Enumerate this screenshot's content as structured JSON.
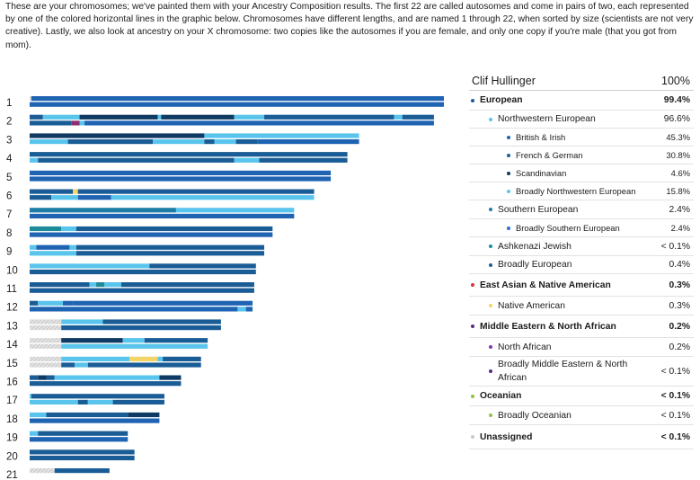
{
  "intro_text": "These are your chromosomes; we've painted them with your Ancestry Composition results. The first 22 are called autosomes and come in pairs of two, each represented by one of the colored horizontal lines in the graphic below. Chromosomes have different lengths, and are named 1 through 22, when sorted by size (scientists are not very creative). Lastly, we also look at ancestry on your X chromosome: two copies like the autosomes if you are female, and only one copy if you're male (that you got from mom).",
  "colors": {
    "british_irish": "#1f63b3",
    "french_german": "#1a5c96",
    "scandinavian": "#0f3a63",
    "broadly_nw_european": "#5ac5ec",
    "southern_european": "#1e7da6",
    "broadly_southern_european": "#2b6fd0",
    "ashkenazi": "#1e8a9a",
    "broadly_european": "#215d8d",
    "east_asian": "#d9363d",
    "native_american": "#f2d467",
    "middle_eastern": "#5b2a86",
    "north_african": "#7c3bb0",
    "broadly_mena": "#8a2f73",
    "oceanian": "#8cc63f",
    "broadly_oceanian": "#8cc63f",
    "unassigned": "#c8c8c8"
  },
  "legend": {
    "person": "Clif Hullinger",
    "total": "100%",
    "rows": [
      {
        "label": "European",
        "value": "99.4%",
        "level": 0,
        "bold": true,
        "color": "#1f5aa0",
        "h": 22
      },
      {
        "label": "Northwestern European",
        "value": "96.6%",
        "level": 1,
        "bold": false,
        "color": "#5ac5ec",
        "h": 20
      },
      {
        "label": "British & Irish",
        "value": "45.3%",
        "level": 2,
        "bold": false,
        "color": "#1f63b3",
        "h": 20
      },
      {
        "label": "French & German",
        "value": "30.8%",
        "level": 2,
        "bold": false,
        "color": "#1a5c96",
        "h": 20
      },
      {
        "label": "Scandinavian",
        "value": "4.6%",
        "level": 2,
        "bold": false,
        "color": "#0f3a63",
        "h": 20
      },
      {
        "label": "Broadly Northwestern European",
        "value": "15.8%",
        "level": 2,
        "bold": false,
        "color": "#5ac5ec",
        "h": 20
      },
      {
        "label": "Southern European",
        "value": "2.4%",
        "level": 1,
        "bold": false,
        "color": "#1e7da6",
        "h": 21
      },
      {
        "label": "Broadly Southern European",
        "value": "2.4%",
        "level": 2,
        "bold": false,
        "color": "#2b6fd0",
        "h": 20
      },
      {
        "label": "Ashkenazi Jewish",
        "value": "< 0.1%",
        "level": 1,
        "bold": false,
        "color": "#1e8a9a",
        "h": 21
      },
      {
        "label": "Broadly European",
        "value": "0.4%",
        "level": 1,
        "bold": false,
        "color": "#215d8d",
        "h": 20
      },
      {
        "label": "East Asian & Native American",
        "value": "0.3%",
        "level": 0,
        "bold": true,
        "color": "#d9363d",
        "h": 25
      },
      {
        "label": "Native American",
        "value": "0.3%",
        "level": 1,
        "bold": false,
        "color": "#f2d467",
        "h": 21
      },
      {
        "label": "Middle Eastern & North African",
        "value": "0.2%",
        "level": 0,
        "bold": true,
        "color": "#5b2a86",
        "h": 25
      },
      {
        "label": "North African",
        "value": "0.2%",
        "level": 1,
        "bold": false,
        "color": "#7c3bb0",
        "h": 21
      },
      {
        "label": "Broadly Middle Eastern & North African",
        "value": "< 0.1%",
        "level": 1,
        "bold": false,
        "color": "#5b2a86",
        "h": 33,
        "wrap": true
      },
      {
        "label": "Oceanian",
        "value": "< 0.1%",
        "level": 0,
        "bold": true,
        "color": "#8cc63f",
        "h": 22
      },
      {
        "label": "Broadly Oceanian",
        "value": "< 0.1%",
        "level": 1,
        "bold": false,
        "color": "#8cc63f",
        "h": 21
      },
      {
        "label": "Unassigned",
        "value": "< 0.1%",
        "level": 0,
        "bold": true,
        "color": "#c8c8c8",
        "h": 27
      }
    ]
  },
  "chart_data": {
    "type": "chromosome_painting",
    "unit": "Mb (approx.)",
    "ancestries": [
      "british_irish",
      "french_german",
      "scandinavian",
      "broadly_nw_european",
      "southern_european",
      "broadly_southern_european",
      "ashkenazi",
      "broadly_european",
      "native_american",
      "broadly_mena",
      "unassigned"
    ],
    "chromosomes": [
      {
        "label": "1",
        "length": 249,
        "copies": [
          [
            [
              0,
              1,
              "unassigned"
            ],
            [
              1,
              249,
              "british_irish"
            ]
          ],
          [
            [
              0,
              249,
              "british_irish"
            ]
          ]
        ]
      },
      {
        "label": "2",
        "length": 243,
        "copies": [
          [
            [
              0,
              8,
              "french_german"
            ],
            [
              8,
              30,
              "broadly_nw_european"
            ],
            [
              30,
              77,
              "scandinavian"
            ],
            [
              77,
              79,
              "broadly_nw_european"
            ],
            [
              79,
              123,
              "scandinavian"
            ],
            [
              123,
              141,
              "broadly_nw_european"
            ],
            [
              141,
              219,
              "french_german"
            ],
            [
              219,
              224,
              "broadly_nw_european"
            ],
            [
              224,
              243,
              "french_german"
            ]
          ],
          [
            [
              0,
              25,
              "french_german"
            ],
            [
              25,
              30,
              "broadly_mena"
            ],
            [
              30,
              33,
              "broadly_nw_european"
            ],
            [
              33,
              243,
              "british_irish"
            ]
          ]
        ]
      },
      {
        "label": "3",
        "length": 198,
        "copies": [
          [
            [
              0,
              105,
              "scandinavian"
            ],
            [
              105,
              198,
              "broadly_nw_european"
            ]
          ],
          [
            [
              0,
              23,
              "broadly_nw_european"
            ],
            [
              23,
              74,
              "french_german"
            ],
            [
              74,
              105,
              "broadly_nw_european"
            ],
            [
              105,
              111,
              "french_german"
            ],
            [
              111,
              124,
              "broadly_nw_european"
            ],
            [
              124,
              137,
              "french_german"
            ],
            [
              137,
              198,
              "british_irish"
            ]
          ]
        ]
      },
      {
        "label": "4",
        "length": 191,
        "copies": [
          [
            [
              0,
              191,
              "french_german"
            ]
          ],
          [
            [
              0,
              5,
              "broadly_nw_european"
            ],
            [
              5,
              123,
              "french_german"
            ],
            [
              123,
              138,
              "broadly_nw_european"
            ],
            [
              138,
              191,
              "french_german"
            ]
          ]
        ]
      },
      {
        "label": "5",
        "length": 181,
        "copies": [
          [
            [
              0,
              181,
              "british_irish"
            ]
          ],
          [
            [
              0,
              181,
              "british_irish"
            ]
          ]
        ]
      },
      {
        "label": "6",
        "length": 171,
        "copies": [
          [
            [
              0,
              26,
              "french_german"
            ],
            [
              26,
              29,
              "native_american"
            ],
            [
              29,
              171,
              "french_german"
            ]
          ],
          [
            [
              0,
              13,
              "french_german"
            ],
            [
              13,
              29,
              "broadly_nw_european"
            ],
            [
              29,
              49,
              "british_irish"
            ],
            [
              49,
              171,
              "broadly_nw_european"
            ]
          ]
        ]
      },
      {
        "label": "7",
        "length": 159,
        "copies": [
          [
            [
              0,
              88,
              "southern_european"
            ],
            [
              88,
              159,
              "broadly_nw_european"
            ]
          ],
          [
            [
              0,
              159,
              "british_irish"
            ]
          ]
        ]
      },
      {
        "label": "8",
        "length": 146,
        "copies": [
          [
            [
              0,
              19,
              "ashkenazi"
            ],
            [
              19,
              28,
              "broadly_nw_european"
            ],
            [
              28,
              146,
              "french_german"
            ]
          ],
          [
            [
              0,
              146,
              "british_irish"
            ]
          ]
        ]
      },
      {
        "label": "9",
        "length": 141,
        "copies": [
          [
            [
              0,
              4,
              "broadly_nw_european"
            ],
            [
              4,
              24,
              "british_irish"
            ],
            [
              24,
              28,
              "broadly_nw_european"
            ],
            [
              28,
              141,
              "french_german"
            ]
          ],
          [
            [
              0,
              28,
              "broadly_nw_european"
            ],
            [
              28,
              141,
              "french_german"
            ]
          ]
        ]
      },
      {
        "label": "10",
        "length": 136,
        "copies": [
          [
            [
              0,
              72,
              "broadly_nw_european"
            ],
            [
              72,
              136,
              "french_german"
            ]
          ],
          [
            [
              0,
              136,
              "french_german"
            ]
          ]
        ]
      },
      {
        "label": "11",
        "length": 135,
        "copies": [
          [
            [
              0,
              36,
              "french_german"
            ],
            [
              36,
              40,
              "broadly_nw_european"
            ],
            [
              40,
              45,
              "ashkenazi"
            ],
            [
              45,
              55,
              "broadly_nw_european"
            ],
            [
              55,
              135,
              "french_german"
            ]
          ],
          [
            [
              0,
              135,
              "french_german"
            ]
          ]
        ]
      },
      {
        "label": "12",
        "length": 134,
        "copies": [
          [
            [
              0,
              5,
              "french_german"
            ],
            [
              5,
              20,
              "broadly_nw_european"
            ],
            [
              20,
              26,
              "british_irish"
            ],
            [
              26,
              134,
              "british_irish"
            ]
          ],
          [
            [
              0,
              125,
              "british_irish"
            ],
            [
              125,
              130,
              "broadly_nw_european"
            ],
            [
              130,
              134,
              "british_irish"
            ]
          ]
        ]
      },
      {
        "label": "13",
        "length": 115,
        "copies": [
          [
            [
              0,
              19,
              "unassigned"
            ],
            [
              19,
              44,
              "broadly_nw_european"
            ],
            [
              44,
              115,
              "french_german"
            ]
          ],
          [
            [
              0,
              19,
              "unassigned"
            ],
            [
              19,
              115,
              "french_german"
            ]
          ]
        ]
      },
      {
        "label": "14",
        "length": 107,
        "copies": [
          [
            [
              0,
              19,
              "unassigned"
            ],
            [
              19,
              56,
              "scandinavian"
            ],
            [
              56,
              69,
              "broadly_nw_european"
            ],
            [
              69,
              107,
              "french_german"
            ]
          ],
          [
            [
              0,
              19,
              "unassigned"
            ],
            [
              19,
              107,
              "broadly_nw_european"
            ]
          ]
        ]
      },
      {
        "label": "15",
        "length": 103,
        "copies": [
          [
            [
              0,
              19,
              "unassigned"
            ],
            [
              19,
              60,
              "broadly_nw_european"
            ],
            [
              60,
              77,
              "native_american"
            ],
            [
              77,
              80,
              "broadly_nw_european"
            ],
            [
              80,
              103,
              "french_german"
            ]
          ],
          [
            [
              0,
              19,
              "unassigned"
            ],
            [
              19,
              27,
              "french_german"
            ],
            [
              27,
              35,
              "broadly_nw_european"
            ],
            [
              35,
              103,
              "french_german"
            ]
          ]
        ]
      },
      {
        "label": "16",
        "length": 91,
        "copies": [
          [
            [
              0,
              5,
              "french_german"
            ],
            [
              5,
              10,
              "scandinavian"
            ],
            [
              10,
              15,
              "french_german"
            ],
            [
              15,
              78,
              "broadly_nw_european"
            ],
            [
              78,
              91,
              "scandinavian"
            ]
          ],
          [
            [
              0,
              91,
              "french_german"
            ]
          ]
        ]
      },
      {
        "label": "17",
        "length": 81,
        "copies": [
          [
            [
              0,
              1,
              "broadly_nw_european"
            ],
            [
              1,
              81,
              "french_german"
            ]
          ],
          [
            [
              0,
              29,
              "broadly_nw_european"
            ],
            [
              29,
              35,
              "french_german"
            ],
            [
              35,
              50,
              "broadly_nw_european"
            ],
            [
              50,
              81,
              "french_german"
            ]
          ]
        ]
      },
      {
        "label": "18",
        "length": 78,
        "copies": [
          [
            [
              0,
              10,
              "broadly_nw_european"
            ],
            [
              10,
              59,
              "french_german"
            ],
            [
              59,
              78,
              "scandinavian"
            ]
          ],
          [
            [
              0,
              78,
              "british_irish"
            ]
          ]
        ]
      },
      {
        "label": "19",
        "length": 59,
        "copies": [
          [
            [
              0,
              5,
              "broadly_nw_european"
            ],
            [
              5,
              59,
              "french_german"
            ]
          ],
          [
            [
              0,
              59,
              "british_irish"
            ]
          ]
        ]
      },
      {
        "label": "20",
        "length": 63,
        "copies": [
          [
            [
              0,
              63,
              "french_german"
            ]
          ],
          [
            [
              0,
              63,
              "french_german"
            ]
          ]
        ]
      },
      {
        "label": "21",
        "length": 48,
        "copies": [
          [
            [
              0,
              15,
              "unassigned"
            ],
            [
              15,
              48,
              "french_german"
            ]
          ]
        ]
      }
    ]
  }
}
